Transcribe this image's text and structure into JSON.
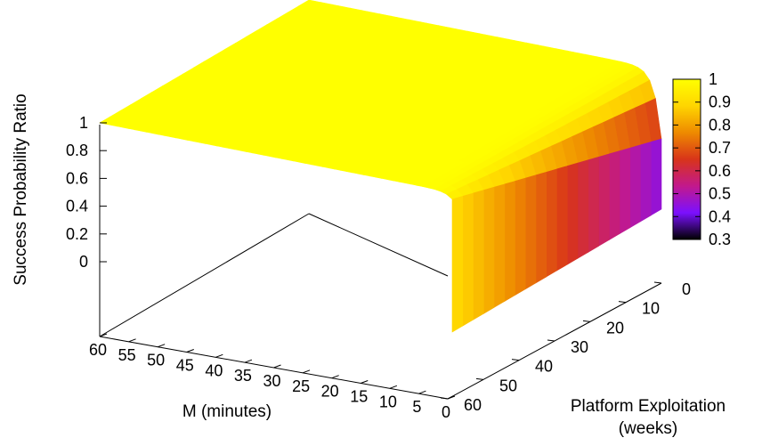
{
  "chart_data": {
    "type": "surface3d",
    "zlabel": "Success Probability Ratio",
    "xlabel": "M (minutes)",
    "ylabel_line1": "Platform Exploitation",
    "ylabel_line2": "(weeks)",
    "x_ticks": [
      "60",
      "55",
      "50",
      "45",
      "40",
      "35",
      "30",
      "25",
      "20",
      "15",
      "10",
      "5",
      "0"
    ],
    "y_ticks": [
      "60",
      "50",
      "40",
      "30",
      "20",
      "10",
      "0"
    ],
    "z_ticks": [
      "0",
      "0.2",
      "0.4",
      "0.6",
      "0.8",
      "1"
    ],
    "colorbar_ticks": [
      "0.3",
      "0.4",
      "0.5",
      "0.6",
      "0.7",
      "0.8",
      "0.9",
      "1"
    ],
    "x_range": [
      0,
      60
    ],
    "y_range": [
      0,
      60
    ],
    "z_range": [
      0,
      1
    ],
    "colorbar_range": [
      0.3,
      1
    ],
    "palette": [
      "#000000",
      "#7b10ff",
      "#c2198c",
      "#d8341a",
      "#ee8a00",
      "#ffd500",
      "#ffff00"
    ],
    "surface_description": "z is about 1 for most M values; near M = 0 it drops to about 0.5 at platform exploitation 0 and about 0.95 at 60 weeks",
    "surface_samples": [
      {
        "x": 60,
        "y": 0,
        "z": 1.0
      },
      {
        "x": 60,
        "y": 60,
        "z": 1.0
      },
      {
        "x": 5,
        "y": 0,
        "z": 0.98
      },
      {
        "x": 5,
        "y": 60,
        "z": 1.0
      },
      {
        "x": 0,
        "y": 0,
        "z": 0.5
      },
      {
        "x": 0,
        "y": 30,
        "z": 0.68
      },
      {
        "x": 0,
        "y": 60,
        "z": 0.95
      }
    ]
  }
}
